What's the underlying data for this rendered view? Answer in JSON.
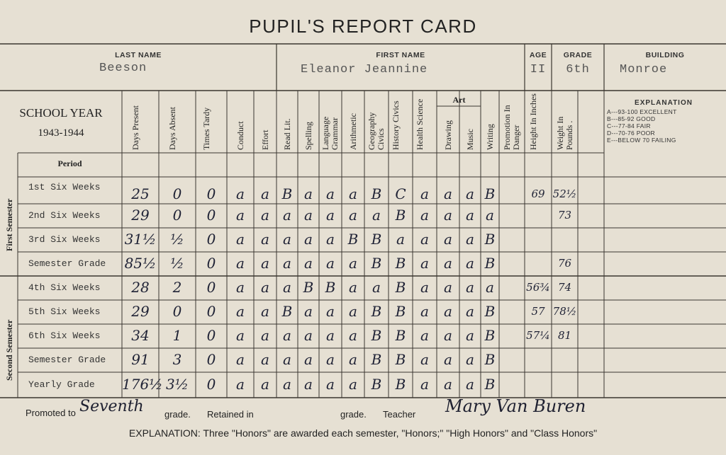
{
  "title": "PUPIL'S REPORT CARD",
  "header": {
    "last_name_label": "LAST NAME",
    "last_name": "Beeson",
    "first_name_label": "FIRST NAME",
    "first_name": "Eleanor Jeannine",
    "age_label": "AGE",
    "age": "II",
    "grade_label": "GRADE",
    "grade": "6th",
    "building_label": "BUILDING",
    "building": "Monroe"
  },
  "school_year_label": "SCHOOL YEAR",
  "school_year": "1943-1944",
  "columns": [
    {
      "label": "Days Present"
    },
    {
      "label": "Days Absent"
    },
    {
      "label": "Times Tardy"
    },
    {
      "label": "Conduct"
    },
    {
      "label": "Effort"
    },
    {
      "label": "Read Lit."
    },
    {
      "label": "Spelling"
    },
    {
      "label": "Language Grammar"
    },
    {
      "label": "Arithmetic"
    },
    {
      "label": "Geography Civics"
    },
    {
      "label": "History Civics"
    },
    {
      "label": "Health Science"
    },
    {
      "label": "Drawing"
    },
    {
      "label": "Music"
    },
    {
      "label": "Writing"
    },
    {
      "label": "Promotion In Danger"
    },
    {
      "label": "Height In Inches"
    },
    {
      "label": "Weight In Pounds ."
    }
  ],
  "art_label": "Art",
  "explanation": {
    "title": "EXPLANATION",
    "lines": [
      "A---93-100 EXCELLENT",
      "B---85-92 GOOD",
      "C---77-84 FAIR",
      "D---70-76 POOR",
      "E---BELOW 70 FAILING"
    ]
  },
  "period_label": "Period",
  "first_semester_label": "First Semester",
  "second_semester_label": "Second Semester",
  "rows": [
    {
      "label": "1st Six Weeks",
      "cells": [
        "25",
        "0",
        "0",
        "a",
        "a",
        "B",
        "a",
        "a",
        "a",
        "B",
        "C",
        "a",
        "a",
        "a",
        "B",
        "",
        "69",
        "52½"
      ]
    },
    {
      "label": "2nd Six Weeks",
      "cells": [
        "29",
        "0",
        "0",
        "a",
        "a",
        "a",
        "a",
        "a",
        "a",
        "a",
        "B",
        "a",
        "a",
        "a",
        "a",
        "",
        "",
        "73"
      ]
    },
    {
      "label": "3rd Six Weeks",
      "cells": [
        "31½",
        "½",
        "0",
        "a",
        "a",
        "a",
        "a",
        "a",
        "B",
        "B",
        "a",
        "a",
        "a",
        "a",
        "B",
        "",
        "",
        ""
      ]
    },
    {
      "label": "Semester Grade",
      "cells": [
        "85½",
        "½",
        "0",
        "a",
        "a",
        "a",
        "a",
        "a",
        "a",
        "B",
        "B",
        "a",
        "a",
        "a",
        "B",
        "",
        "",
        "76"
      ]
    },
    {
      "label": "4th Six Weeks",
      "cells": [
        "28",
        "2",
        "0",
        "a",
        "a",
        "a",
        "B",
        "B",
        "a",
        "a",
        "B",
        "a",
        "a",
        "a",
        "a",
        "",
        "56¾",
        "74"
      ]
    },
    {
      "label": "5th Six Weeks",
      "cells": [
        "29",
        "0",
        "0",
        "a",
        "a",
        "B",
        "a",
        "a",
        "a",
        "B",
        "B",
        "a",
        "a",
        "a",
        "B",
        "",
        "57",
        "78½"
      ]
    },
    {
      "label": "6th Six Weeks",
      "cells": [
        "34",
        "1",
        "0",
        "a",
        "a",
        "a",
        "a",
        "a",
        "a",
        "B",
        "B",
        "a",
        "a",
        "a",
        "B",
        "",
        "57¼",
        "81"
      ]
    },
    {
      "label": "Semester Grade",
      "cells": [
        "91",
        "3",
        "0",
        "a",
        "a",
        "a",
        "a",
        "a",
        "a",
        "B",
        "B",
        "a",
        "a",
        "a",
        "B",
        "",
        "",
        ""
      ]
    },
    {
      "label": "Yearly Grade",
      "cells": [
        "176½",
        "3½",
        "0",
        "a",
        "a",
        "a",
        "a",
        "a",
        "a",
        "B",
        "B",
        "a",
        "a",
        "a",
        "B",
        "",
        "",
        ""
      ]
    }
  ],
  "footer": {
    "promoted_to_label": "Promoted to",
    "promoted_to_value": "Seventh",
    "grade_label_1": "grade.",
    "retained_in_label": "Retained in",
    "grade_label_2": "grade.",
    "teacher_label": "Teacher",
    "teacher_signature": "Mary Van Buren",
    "explanation_text": "EXPLANATION: Three \"Honors\" are awarded each semester, \"Honors;\" \"High Honors\" and \"Class Honors\""
  }
}
